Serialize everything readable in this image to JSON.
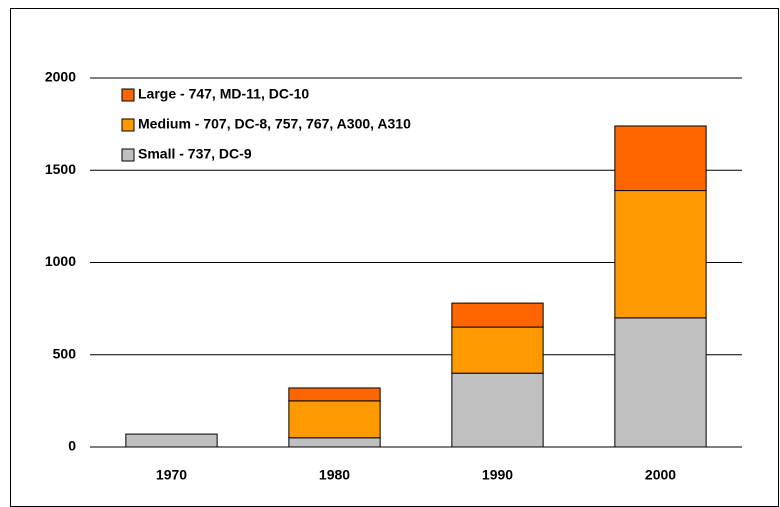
{
  "chart_data": {
    "type": "stacked_bar",
    "categories": [
      "1970",
      "1980",
      "1990",
      "2000"
    ],
    "series": [
      {
        "name": "Small  - 737, DC-9",
        "color": "#c0c0c0",
        "values": [
          70,
          50,
          400,
          700
        ]
      },
      {
        "name": "Medium - 707, DC-8, 757, 767, A300, A310",
        "color": "#ff9900",
        "values": [
          0,
          200,
          250,
          690
        ]
      },
      {
        "name": "Large - 747, MD-11, DC-10",
        "color": "#ff6600",
        "values": [
          0,
          70,
          130,
          350
        ]
      }
    ],
    "ylim": [
      0,
      2000
    ],
    "yticks": [
      0,
      500,
      1000,
      1500,
      2000
    ],
    "grid": true,
    "legend": "upper left"
  }
}
